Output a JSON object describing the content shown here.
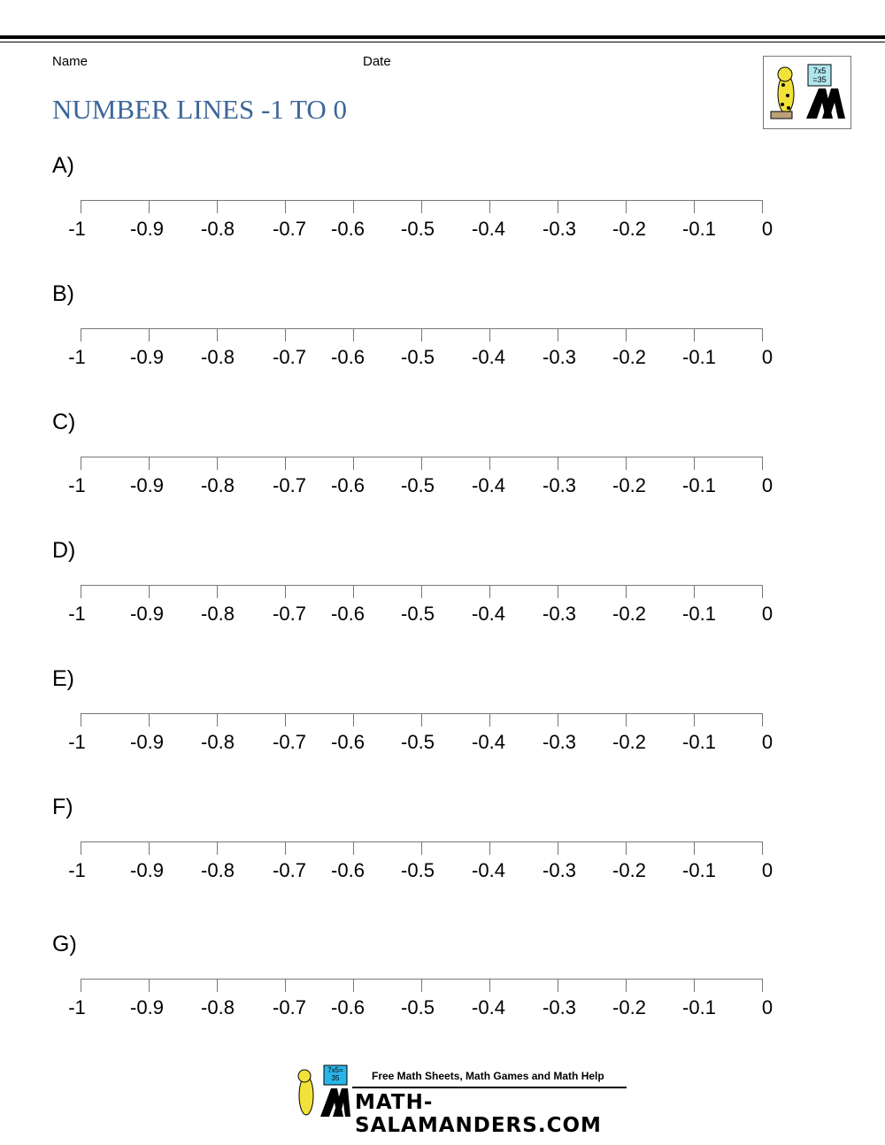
{
  "header": {
    "name_label": "Name",
    "date_label": "Date",
    "title": "NUMBER LINES -1 TO 0"
  },
  "logo": {
    "board_text": "7x5 =35"
  },
  "number_lines": [
    {
      "letter": "A)",
      "ticks": [
        "-1",
        "-0.9",
        "-0.8",
        "-0.7",
        "-0.6",
        "-0.5",
        "-0.4",
        "-0.3",
        "-0.2",
        "-0.1",
        "0"
      ]
    },
    {
      "letter": "B)",
      "ticks": [
        "-1",
        "-0.9",
        "-0.8",
        "-0.7",
        "-0.6",
        "-0.5",
        "-0.4",
        "-0.3",
        "-0.2",
        "-0.1",
        "0"
      ]
    },
    {
      "letter": "C)",
      "ticks": [
        "-1",
        "-0.9",
        "-0.8",
        "-0.7",
        "-0.6",
        "-0.5",
        "-0.4",
        "-0.3",
        "-0.2",
        "-0.1",
        "0"
      ]
    },
    {
      "letter": "D)",
      "ticks": [
        "-1",
        "-0.9",
        "-0.8",
        "-0.7",
        "-0.6",
        "-0.5",
        "-0.4",
        "-0.3",
        "-0.2",
        "-0.1",
        "0"
      ]
    },
    {
      "letter": "E)",
      "ticks": [
        "-1",
        "-0.9",
        "-0.8",
        "-0.7",
        "-0.6",
        "-0.5",
        "-0.4",
        "-0.3",
        "-0.2",
        "-0.1",
        "0"
      ]
    },
    {
      "letter": "F)",
      "ticks": [
        "-1",
        "-0.9",
        "-0.8",
        "-0.7",
        "-0.6",
        "-0.5",
        "-0.4",
        "-0.3",
        "-0.2",
        "-0.1",
        "0"
      ]
    },
    {
      "letter": "G)",
      "ticks": [
        "-1",
        "-0.9",
        "-0.8",
        "-0.7",
        "-0.6",
        "-0.5",
        "-0.4",
        "-0.3",
        "-0.2",
        "-0.1",
        "0"
      ]
    }
  ],
  "footer": {
    "tagline": "Free Math Sheets, Math Games and Math Help",
    "brand": "MATH-SALAMANDERS.COM",
    "board_text": "7x5= 35"
  },
  "colors": {
    "title": "#3c6698",
    "axis": "#777777"
  }
}
